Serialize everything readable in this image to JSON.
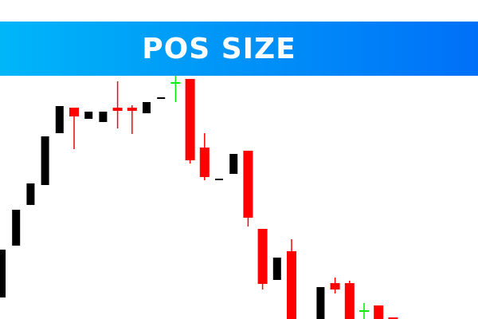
{
  "banner": {
    "title": "POS SIZE",
    "gradient": [
      "#00b6f9",
      "#0070f8"
    ]
  },
  "chart_data": {
    "type": "candlestick",
    "title": "",
    "xlabel": "",
    "ylabel": "",
    "grid": false,
    "legend": "none",
    "ylim": [
      0,
      400
    ],
    "colors": {
      "up": "#000000",
      "down": "#ff0000",
      "doji": "#00ee00"
    },
    "candles": [
      {
        "o": 27,
        "h": 87,
        "l": 27,
        "c": 87,
        "color": "up"
      },
      {
        "o": 92,
        "h": 137,
        "l": 92,
        "c": 137,
        "color": "up"
      },
      {
        "o": 143,
        "h": 170,
        "l": 143,
        "c": 170,
        "color": "up"
      },
      {
        "o": 168,
        "h": 229,
        "l": 168,
        "c": 229,
        "color": "up"
      },
      {
        "o": 233,
        "h": 267,
        "l": 233,
        "c": 267,
        "color": "up"
      },
      {
        "o": 265,
        "h": 265,
        "l": 213,
        "c": 254,
        "color": "down"
      },
      {
        "o": 251,
        "h": 260,
        "l": 251,
        "c": 260,
        "color": "up"
      },
      {
        "o": 247,
        "h": 260,
        "l": 247,
        "c": 260,
        "color": "up"
      },
      {
        "o": 265,
        "h": 298,
        "l": 239,
        "c": 261,
        "color": "down"
      },
      {
        "o": 265,
        "h": 268,
        "l": 232,
        "c": 261,
        "color": "down"
      },
      {
        "o": 258,
        "h": 272,
        "l": 258,
        "c": 272,
        "color": "up"
      },
      {
        "o": 277,
        "h": 278,
        "l": 277,
        "c": 278,
        "color": "up"
      },
      {
        "o": 297,
        "h": 305,
        "l": 272,
        "c": 297,
        "color": "doji"
      },
      {
        "o": 301,
        "h": 301,
        "l": 195,
        "c": 199,
        "color": "down"
      },
      {
        "o": 215,
        "h": 233,
        "l": 174,
        "c": 178,
        "color": "down"
      },
      {
        "o": 175,
        "h": 176,
        "l": 175,
        "c": 176,
        "color": "up"
      },
      {
        "o": 182,
        "h": 207,
        "l": 182,
        "c": 207,
        "color": "up"
      },
      {
        "o": 211,
        "h": 211,
        "l": 116,
        "c": 127,
        "color": "down"
      },
      {
        "o": 113,
        "h": 113,
        "l": 37,
        "c": 44,
        "color": "down"
      },
      {
        "o": 49,
        "h": 77,
        "l": 49,
        "c": 77,
        "color": "up"
      },
      {
        "o": 85,
        "h": 100,
        "l": -10,
        "c": -5,
        "color": "down"
      },
      null,
      {
        "o": -5,
        "h": 40,
        "l": -5,
        "c": 40,
        "color": "up"
      },
      {
        "o": 45,
        "h": 52,
        "l": 32,
        "c": 37,
        "color": "down"
      },
      {
        "o": 45,
        "h": 48,
        "l": -10,
        "c": -5,
        "color": "down"
      },
      {
        "o": 11,
        "h": 20,
        "l": -5,
        "c": 11,
        "color": "doji"
      },
      {
        "o": 17,
        "h": 17,
        "l": -10,
        "c": -5,
        "color": "down"
      },
      {
        "o": 2,
        "h": 2,
        "l": -10,
        "c": -5,
        "color": "down"
      }
    ]
  }
}
